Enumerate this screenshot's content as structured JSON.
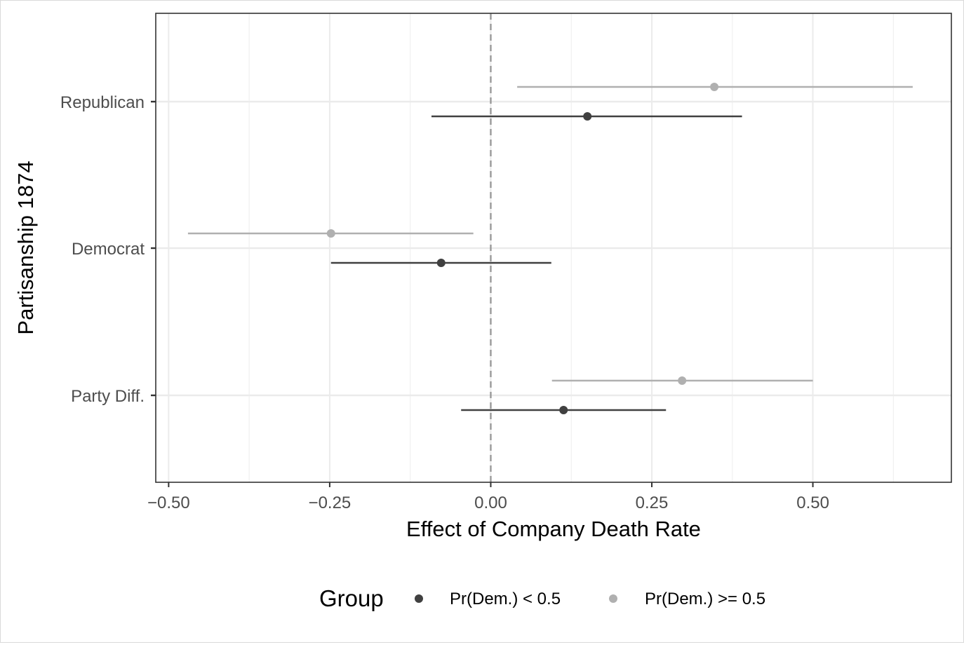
{
  "chart_data": {
    "type": "pointrange",
    "xlabel": "Effect of Company Death Rate",
    "ylabel": "Partisanship 1874",
    "xlim": [
      -0.52,
      0.715
    ],
    "x_ticks": [
      -0.5,
      -0.25,
      0.0,
      0.25,
      0.5
    ],
    "x_tick_labels": [
      "−0.50",
      "−0.25",
      "0.00",
      "0.25",
      "0.50"
    ],
    "categories": [
      "Republican",
      "Democrat",
      "Party Diff."
    ],
    "reference_line": 0,
    "grid": true,
    "legend": {
      "title": "Group",
      "position": "bottom"
    },
    "series": [
      {
        "name": "Pr(Dem.) < 0.5",
        "color": "#404040",
        "points": [
          {
            "category": "Republican",
            "estimate": 0.15,
            "lower": -0.092,
            "upper": 0.39
          },
          {
            "category": "Democrat",
            "estimate": -0.077,
            "lower": -0.248,
            "upper": 0.094
          },
          {
            "category": "Party Diff.",
            "estimate": 0.113,
            "lower": -0.046,
            "upper": 0.272
          }
        ]
      },
      {
        "name": "Pr(Dem.) >= 0.5",
        "color": "#b0b0b0",
        "points": [
          {
            "category": "Republican",
            "estimate": 0.347,
            "lower": 0.041,
            "upper": 0.655
          },
          {
            "category": "Democrat",
            "estimate": -0.248,
            "lower": -0.47,
            "upper": -0.027
          },
          {
            "category": "Party Diff.",
            "estimate": 0.297,
            "lower": 0.095,
            "upper": 0.5
          }
        ]
      }
    ]
  }
}
